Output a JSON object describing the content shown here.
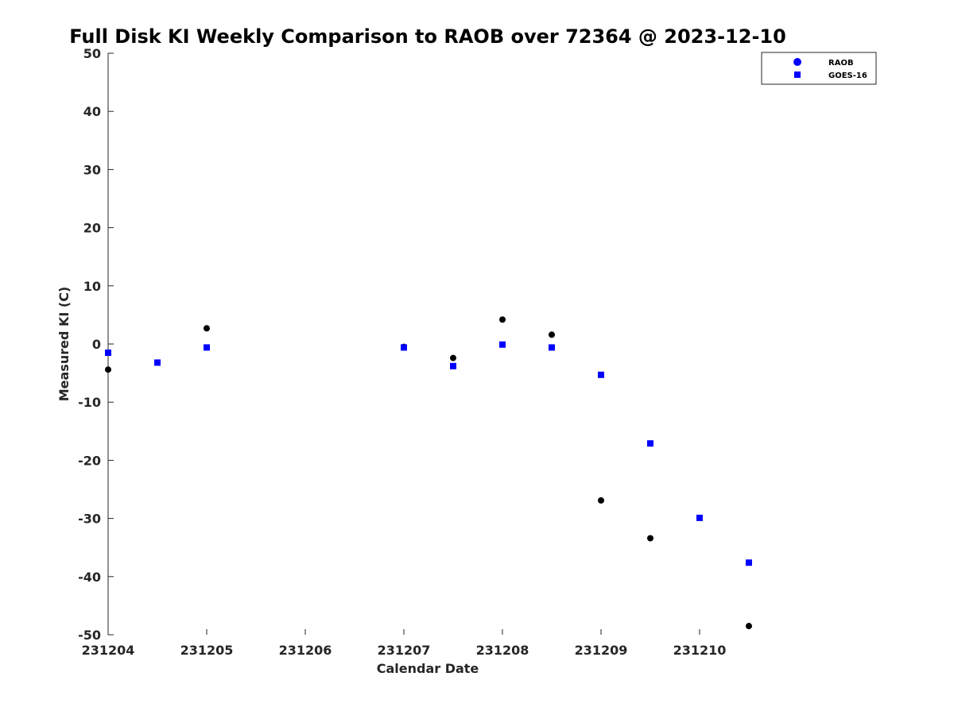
{
  "chart_data": {
    "type": "scatter",
    "title": "Full Disk KI Weekly Comparison to RAOB over 72364 @ 2023-12-10",
    "xlabel": "Calendar Date",
    "ylabel": "Measured KI (C)",
    "xlim": [
      0,
      6.5
    ],
    "ylim": [
      -50,
      50
    ],
    "x_ticks": [
      {
        "value": 0,
        "label": "231204"
      },
      {
        "value": 1,
        "label": "231205"
      },
      {
        "value": 2,
        "label": "231206"
      },
      {
        "value": 3,
        "label": "231207"
      },
      {
        "value": 4,
        "label": "231208"
      },
      {
        "value": 5,
        "label": "231209"
      },
      {
        "value": 6,
        "label": "231210"
      }
    ],
    "y_ticks": [
      "50",
      "40",
      "30",
      "20",
      "10",
      "0",
      "-10",
      "-20",
      "-30",
      "-40",
      "-50"
    ],
    "grid": false,
    "legend_position": "top-right",
    "series": [
      {
        "name": "RAOB",
        "marker": "circle",
        "color": "#000000",
        "legend_color": "#0000ff",
        "x": [
          0,
          1,
          3,
          3.5,
          4,
          4.5,
          5,
          5.5,
          6.5
        ],
        "y": [
          -4.4,
          2.7,
          -0.5,
          -2.4,
          4.2,
          1.6,
          -26.9,
          -33.4,
          -48.5
        ]
      },
      {
        "name": "GOES-16",
        "marker": "square",
        "color": "#0000ff",
        "legend_color": "#0000ff",
        "x": [
          0,
          0.5,
          1,
          3,
          3.5,
          4,
          4.5,
          5,
          5.5,
          6,
          6.5
        ],
        "y": [
          -1.5,
          -3.2,
          -0.6,
          -0.6,
          -3.8,
          -0.1,
          -0.6,
          -5.3,
          -17.1,
          -29.9,
          -37.6
        ]
      }
    ]
  }
}
